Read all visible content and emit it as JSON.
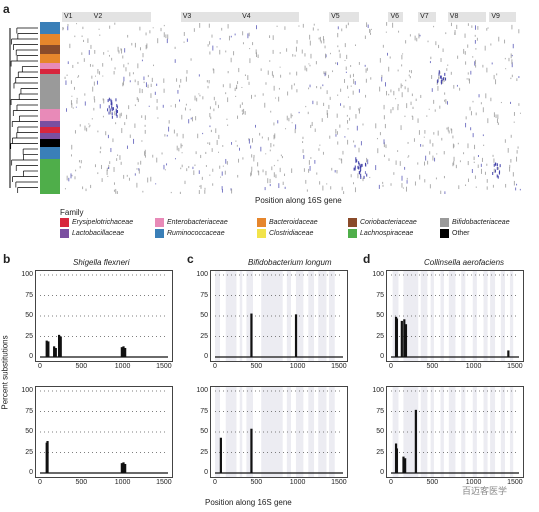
{
  "panel_a": {
    "letter": "a",
    "regions": [
      {
        "label": "V1",
        "start": 0,
        "end": 1
      },
      {
        "label": "V2",
        "start": 1,
        "end": 3
      },
      {
        "label": "V3",
        "start": 4,
        "end": 6
      },
      {
        "label": "V4",
        "start": 6,
        "end": 8
      },
      {
        "label": "V5",
        "start": 9,
        "end": 10
      },
      {
        "label": "V6",
        "start": 11,
        "end": 11.5
      },
      {
        "label": "V7",
        "start": 12,
        "end": 12.6
      },
      {
        "label": "V8",
        "start": 13,
        "end": 14.3
      },
      {
        "label": "V9",
        "start": 14.4,
        "end": 15.3
      }
    ],
    "xlabel": "Position along 16S gene"
  },
  "legend": {
    "title": "Family",
    "items": [
      {
        "label": "Erysipelotrichaceae",
        "color": "#d7263d",
        "italic": true
      },
      {
        "label": "Enterobacteriaceae",
        "color": "#e88ab8",
        "italic": true
      },
      {
        "label": "Bacteroidaceae",
        "color": "#e6862c",
        "italic": true
      },
      {
        "label": "Coriobacteriaceae",
        "color": "#8a4b2a",
        "italic": true
      },
      {
        "label": "Bifidobacteriaceae",
        "color": "#9a9a9a",
        "italic": true
      },
      {
        "label": "Lactobacillaceae",
        "color": "#7a4fa0",
        "italic": true
      },
      {
        "label": "Ruminococcaceae",
        "color": "#3a7fb8",
        "italic": true
      },
      {
        "label": "Clostridiaceae",
        "color": "#f2e34a",
        "italic": true
      },
      {
        "label": "Lachnospiraceae",
        "color": "#4fae4a",
        "italic": true
      },
      {
        "label": "Other",
        "color": "#000000",
        "italic": false
      }
    ]
  },
  "shared": {
    "ylabel": "Percent substitutions",
    "xlabel": "Position along 16S gene"
  },
  "chart_data": [
    {
      "panel": "b",
      "row": 1,
      "type": "bar",
      "title": "Shigella flexneri",
      "xlim": [
        0,
        1550
      ],
      "ylim": [
        0,
        100
      ],
      "xticks": [
        0,
        500,
        1000,
        1500
      ],
      "yticks": [
        0,
        25,
        50,
        75,
        100
      ],
      "bars": [
        [
          80,
          20
        ],
        [
          100,
          19
        ],
        [
          170,
          13
        ],
        [
          190,
          11
        ],
        [
          230,
          27
        ],
        [
          250,
          25
        ],
        [
          990,
          12
        ],
        [
          1010,
          13
        ],
        [
          1030,
          11
        ]
      ]
    },
    {
      "panel": "b",
      "row": 2,
      "type": "bar",
      "title": "",
      "xlim": [
        0,
        1550
      ],
      "ylim": [
        0,
        100
      ],
      "xticks": [
        0,
        500,
        1000,
        1500
      ],
      "yticks": [
        0,
        25,
        50,
        75,
        100
      ],
      "bars": [
        [
          80,
          37
        ],
        [
          90,
          39
        ],
        [
          990,
          12
        ],
        [
          1010,
          13
        ],
        [
          1030,
          11
        ]
      ]
    },
    {
      "panel": "c",
      "row": 1,
      "type": "bar",
      "title": "Bifidobacterium longum",
      "xlim": [
        0,
        1550
      ],
      "ylim": [
        0,
        100
      ],
      "xticks": [
        0,
        500,
        1000,
        1500
      ],
      "yticks": [
        0,
        25,
        50,
        75,
        100
      ],
      "bars": [
        [
          440,
          53
        ],
        [
          980,
          52
        ]
      ]
    },
    {
      "panel": "c",
      "row": 2,
      "type": "bar",
      "title": "",
      "xlim": [
        0,
        1550
      ],
      "ylim": [
        0,
        100
      ],
      "xticks": [
        0,
        500,
        1000,
        1500
      ],
      "yticks": [
        0,
        25,
        50,
        75,
        100
      ],
      "bars": [
        [
          70,
          43
        ],
        [
          440,
          54
        ]
      ]
    },
    {
      "panel": "d",
      "row": 1,
      "type": "bar",
      "title": "Collinsella aerofaciens",
      "xlim": [
        0,
        1550
      ],
      "ylim": [
        0,
        100
      ],
      "xticks": [
        0,
        500,
        1000,
        1500
      ],
      "yticks": [
        0,
        25,
        50,
        75,
        100
      ],
      "bars": [
        [
          60,
          49
        ],
        [
          70,
          47
        ],
        [
          130,
          44
        ],
        [
          160,
          46
        ],
        [
          180,
          40
        ],
        [
          1420,
          8
        ]
      ]
    },
    {
      "panel": "d",
      "row": 2,
      "type": "bar",
      "title": "",
      "xlim": [
        0,
        1550
      ],
      "ylim": [
        0,
        100
      ],
      "xticks": [
        0,
        500,
        1000,
        1500
      ],
      "yticks": [
        0,
        25,
        50,
        75,
        100
      ],
      "bars": [
        [
          60,
          36
        ],
        [
          70,
          30
        ],
        [
          150,
          20
        ],
        [
          170,
          18
        ],
        [
          300,
          77
        ]
      ]
    }
  ],
  "watermark": "百迈客医学"
}
